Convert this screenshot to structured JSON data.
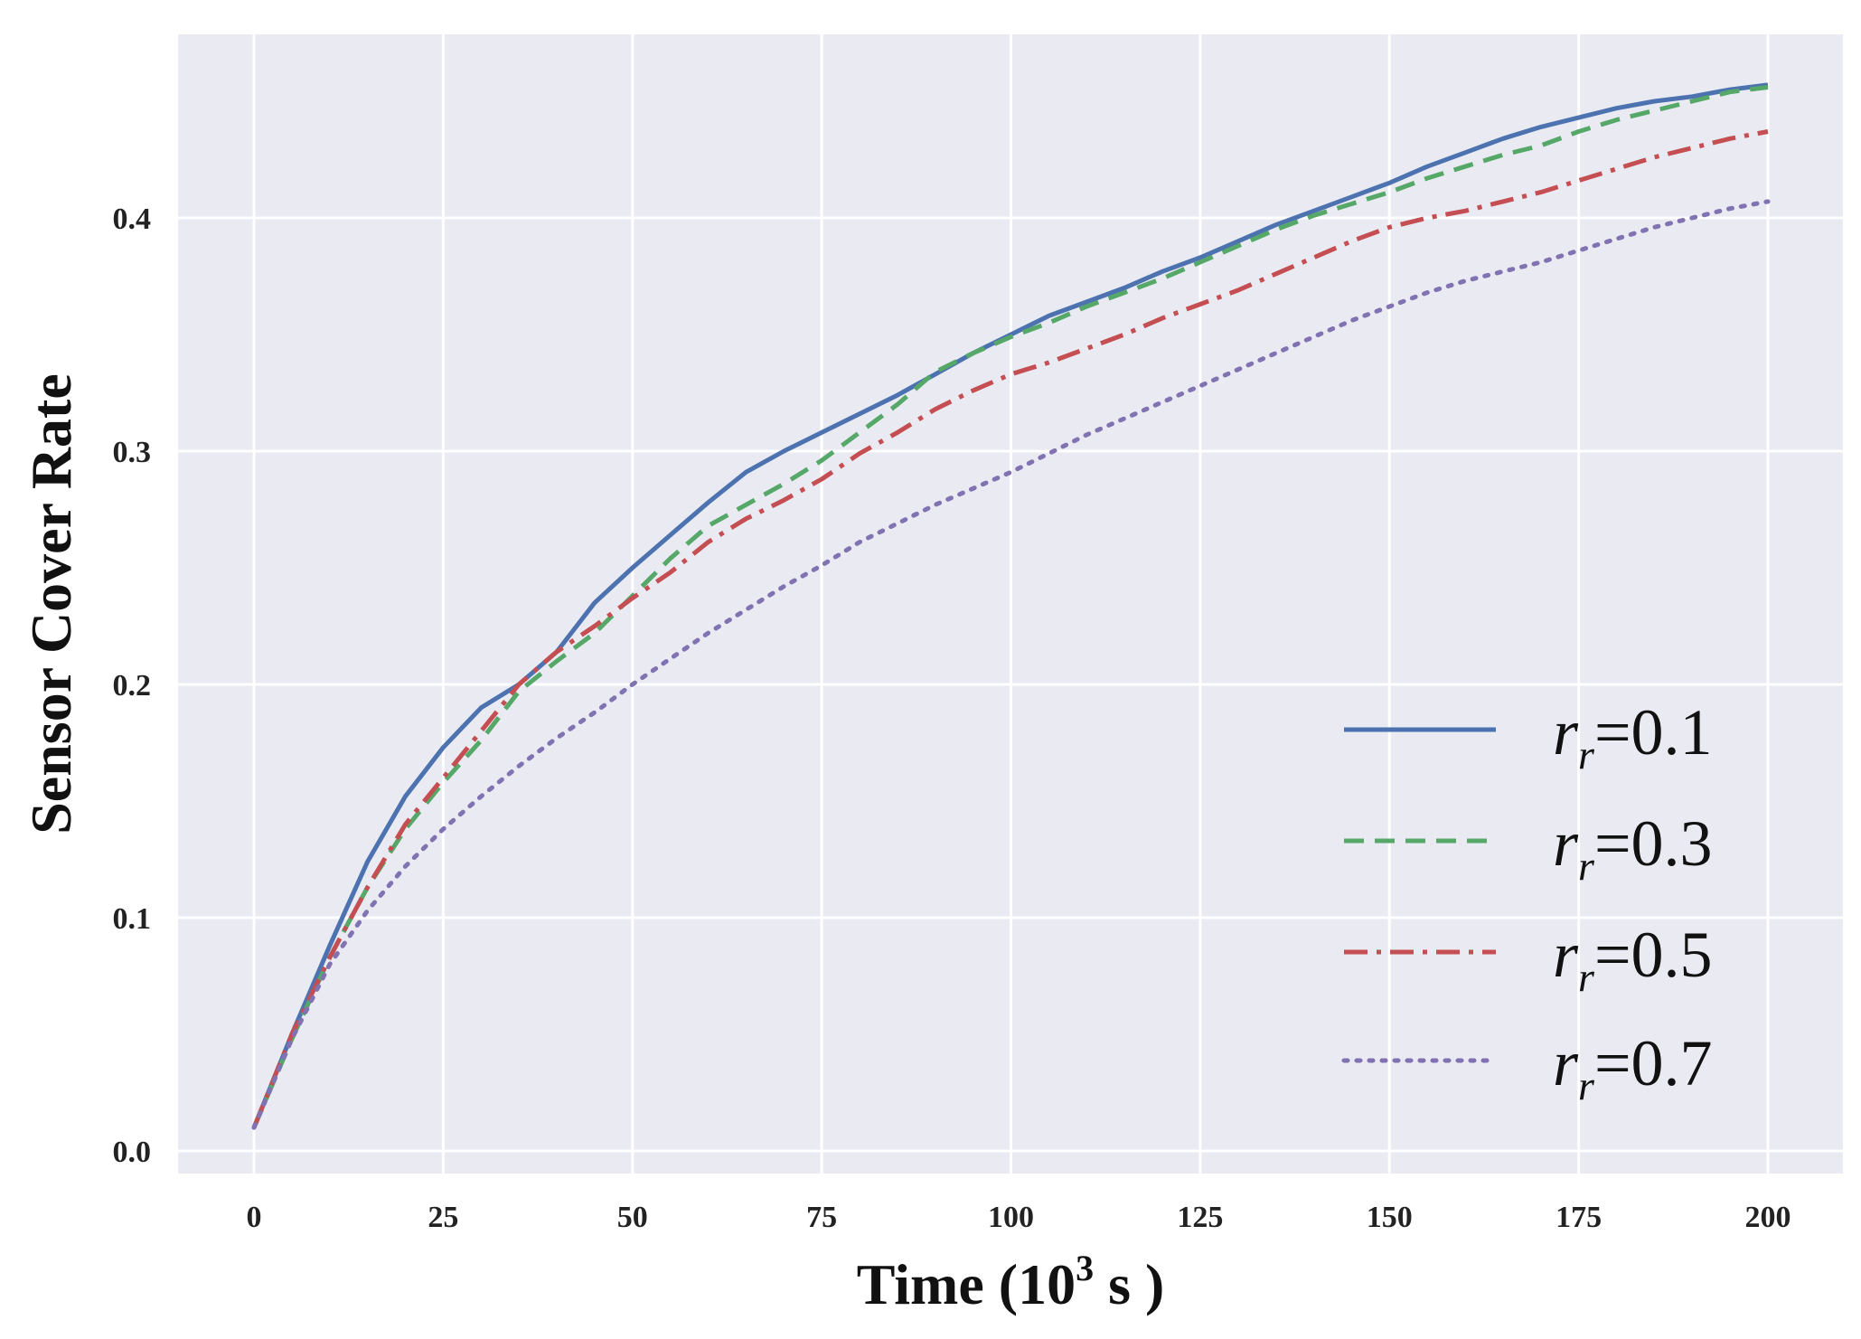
{
  "chart_data": {
    "type": "line",
    "title": "",
    "xlabel_main": "Time (10",
    "xlabel_sup": "3",
    "xlabel_tail": " s )",
    "ylabel": "Sensor Cover Rate",
    "xlim": [
      -10,
      210
    ],
    "ylim": [
      -0.012,
      0.48
    ],
    "xticks": [
      0,
      25,
      50,
      75,
      100,
      125,
      150,
      175,
      200
    ],
    "yticks": [
      0.0,
      0.1,
      0.2,
      0.3,
      0.4
    ],
    "xtick_labels": [
      "0",
      "25",
      "50",
      "75",
      "100",
      "125",
      "150",
      "175",
      "200"
    ],
    "ytick_labels": [
      "0.0",
      "0.1",
      "0.2",
      "0.3",
      "0.4"
    ],
    "grid": true,
    "legend_position": "bottom-right",
    "background": "#eaeaf2",
    "series": [
      {
        "name": "r_r = 0.1",
        "legend_base": "r",
        "legend_sub": "r",
        "legend_value": "=0.1",
        "color": "#4c72b0",
        "style": "solid",
        "x": [
          0,
          5,
          10,
          15,
          20,
          25,
          30,
          35,
          40,
          45,
          50,
          55,
          60,
          65,
          70,
          75,
          80,
          85,
          90,
          95,
          100,
          105,
          110,
          115,
          120,
          125,
          130,
          135,
          140,
          145,
          150,
          155,
          160,
          165,
          170,
          175,
          180,
          185,
          190,
          195,
          200
        ],
        "y": [
          0.01,
          0.05,
          0.088,
          0.124,
          0.152,
          0.173,
          0.19,
          0.2,
          0.214,
          0.235,
          0.25,
          0.264,
          0.278,
          0.291,
          0.3,
          0.308,
          0.316,
          0.324,
          0.333,
          0.342,
          0.35,
          0.358,
          0.364,
          0.37,
          0.377,
          0.383,
          0.39,
          0.397,
          0.403,
          0.409,
          0.415,
          0.422,
          0.428,
          0.434,
          0.439,
          0.443,
          0.447,
          0.45,
          0.452,
          0.455,
          0.457
        ]
      },
      {
        "name": "r_r = 0.3",
        "legend_base": "r",
        "legend_sub": "r",
        "legend_value": "=0.3",
        "color": "#55a868",
        "style": "dashed",
        "x": [
          0,
          5,
          10,
          15,
          20,
          25,
          30,
          35,
          40,
          45,
          50,
          55,
          60,
          65,
          70,
          75,
          80,
          85,
          90,
          95,
          100,
          105,
          110,
          115,
          120,
          125,
          130,
          135,
          140,
          145,
          150,
          155,
          160,
          165,
          170,
          175,
          180,
          185,
          190,
          195,
          200
        ],
        "y": [
          0.01,
          0.048,
          0.083,
          0.113,
          0.138,
          0.158,
          0.176,
          0.197,
          0.21,
          0.222,
          0.238,
          0.254,
          0.268,
          0.277,
          0.286,
          0.296,
          0.308,
          0.32,
          0.334,
          0.342,
          0.349,
          0.355,
          0.362,
          0.368,
          0.374,
          0.381,
          0.388,
          0.395,
          0.401,
          0.406,
          0.411,
          0.417,
          0.422,
          0.427,
          0.431,
          0.437,
          0.442,
          0.446,
          0.45,
          0.454,
          0.456
        ]
      },
      {
        "name": "r_r = 0.5",
        "legend_base": "r",
        "legend_sub": "r",
        "legend_value": "=0.5",
        "color": "#c44e52",
        "style": "dashdot",
        "x": [
          0,
          5,
          10,
          15,
          20,
          25,
          30,
          35,
          40,
          45,
          50,
          55,
          60,
          65,
          70,
          75,
          80,
          85,
          90,
          95,
          100,
          105,
          110,
          115,
          120,
          125,
          130,
          135,
          140,
          145,
          150,
          155,
          160,
          165,
          170,
          175,
          180,
          185,
          190,
          195,
          200
        ],
        "y": [
          0.01,
          0.05,
          0.083,
          0.113,
          0.14,
          0.16,
          0.18,
          0.2,
          0.214,
          0.225,
          0.237,
          0.248,
          0.261,
          0.271,
          0.279,
          0.288,
          0.299,
          0.308,
          0.318,
          0.326,
          0.333,
          0.338,
          0.344,
          0.35,
          0.357,
          0.363,
          0.369,
          0.376,
          0.383,
          0.39,
          0.396,
          0.4,
          0.403,
          0.407,
          0.411,
          0.416,
          0.421,
          0.426,
          0.43,
          0.434,
          0.437
        ]
      },
      {
        "name": "r_r = 0.7",
        "legend_base": "r",
        "legend_sub": "r",
        "legend_value": "=0.7",
        "color": "#8172b2",
        "style": "dotted",
        "x": [
          0,
          5,
          10,
          15,
          20,
          25,
          30,
          35,
          40,
          45,
          50,
          55,
          60,
          65,
          70,
          75,
          80,
          85,
          90,
          95,
          100,
          105,
          110,
          115,
          120,
          125,
          130,
          135,
          140,
          145,
          150,
          155,
          160,
          165,
          170,
          175,
          180,
          185,
          190,
          195,
          200
        ],
        "y": [
          0.01,
          0.048,
          0.08,
          0.103,
          0.122,
          0.138,
          0.152,
          0.165,
          0.177,
          0.188,
          0.2,
          0.211,
          0.222,
          0.232,
          0.242,
          0.251,
          0.261,
          0.269,
          0.277,
          0.284,
          0.291,
          0.299,
          0.307,
          0.314,
          0.321,
          0.328,
          0.335,
          0.342,
          0.349,
          0.356,
          0.362,
          0.368,
          0.373,
          0.377,
          0.381,
          0.386,
          0.391,
          0.396,
          0.4,
          0.404,
          0.407
        ]
      }
    ]
  }
}
